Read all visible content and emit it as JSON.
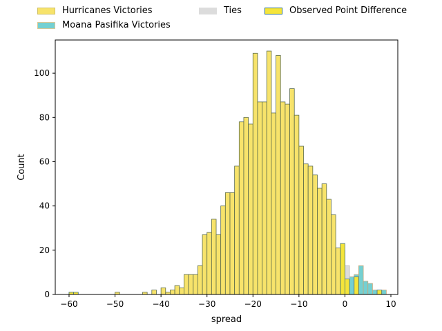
{
  "chart_data": {
    "type": "histogram",
    "xlabel": "spread",
    "ylabel": "Count",
    "xlim": [
      -63,
      11.5
    ],
    "ylim": [
      0,
      115
    ],
    "xticks": [
      -60,
      -50,
      -40,
      -30,
      -20,
      -10,
      0,
      10
    ],
    "yticks": [
      0,
      20,
      40,
      60,
      80,
      100
    ],
    "bin_width": 1,
    "legend_position": "top",
    "series": [
      {
        "name": "Hurricanes Victories",
        "color": "#f7e36b",
        "bins": [
          [
            -60,
            1
          ],
          [
            -50,
            1
          ],
          [
            -44,
            1
          ],
          [
            -42,
            2
          ],
          [
            -40,
            3
          ],
          [
            -39,
            1
          ],
          [
            -38,
            2
          ],
          [
            -37,
            4
          ],
          [
            -36,
            3
          ],
          [
            -35,
            9
          ],
          [
            -34,
            9
          ],
          [
            -33,
            9
          ],
          [
            -32,
            13
          ],
          [
            -31,
            27
          ],
          [
            -30,
            28
          ],
          [
            -29,
            34
          ],
          [
            -28,
            27
          ],
          [
            -27,
            40
          ],
          [
            -26,
            46
          ],
          [
            -25,
            46
          ],
          [
            -24,
            58
          ],
          [
            -23,
            78
          ],
          [
            -22,
            80
          ],
          [
            -21,
            77
          ],
          [
            -20,
            109
          ],
          [
            -19,
            87
          ],
          [
            -18,
            87
          ],
          [
            -17,
            110
          ],
          [
            -16,
            82
          ],
          [
            -15,
            108
          ],
          [
            -14,
            87
          ],
          [
            -13,
            86
          ],
          [
            -12,
            93
          ],
          [
            -11,
            81
          ],
          [
            -10,
            67
          ],
          [
            -9,
            59
          ],
          [
            -8,
            58
          ],
          [
            -7,
            54
          ],
          [
            -6,
            48
          ],
          [
            -5,
            50
          ],
          [
            -4,
            43
          ],
          [
            -3,
            36
          ],
          [
            -2,
            21
          ],
          [
            -1,
            20
          ]
        ]
      },
      {
        "name": "Moana Pasifika Victories",
        "color": "#74d0d2",
        "bins": [
          [
            1,
            8
          ],
          [
            2,
            9
          ],
          [
            3,
            13
          ],
          [
            4,
            6
          ],
          [
            5,
            5
          ],
          [
            6,
            2
          ],
          [
            8,
            2
          ]
        ]
      },
      {
        "name": "Ties",
        "color": "#dcdcdc",
        "bins": [
          [
            0,
            13
          ]
        ]
      },
      {
        "name": "Observed Point Difference",
        "color": "#f5e53a",
        "bins": [
          [
            -60,
            1
          ],
          [
            -59,
            1
          ],
          [
            -1,
            23
          ],
          [
            0,
            7
          ],
          [
            2,
            8
          ],
          [
            7,
            2
          ]
        ]
      }
    ]
  }
}
